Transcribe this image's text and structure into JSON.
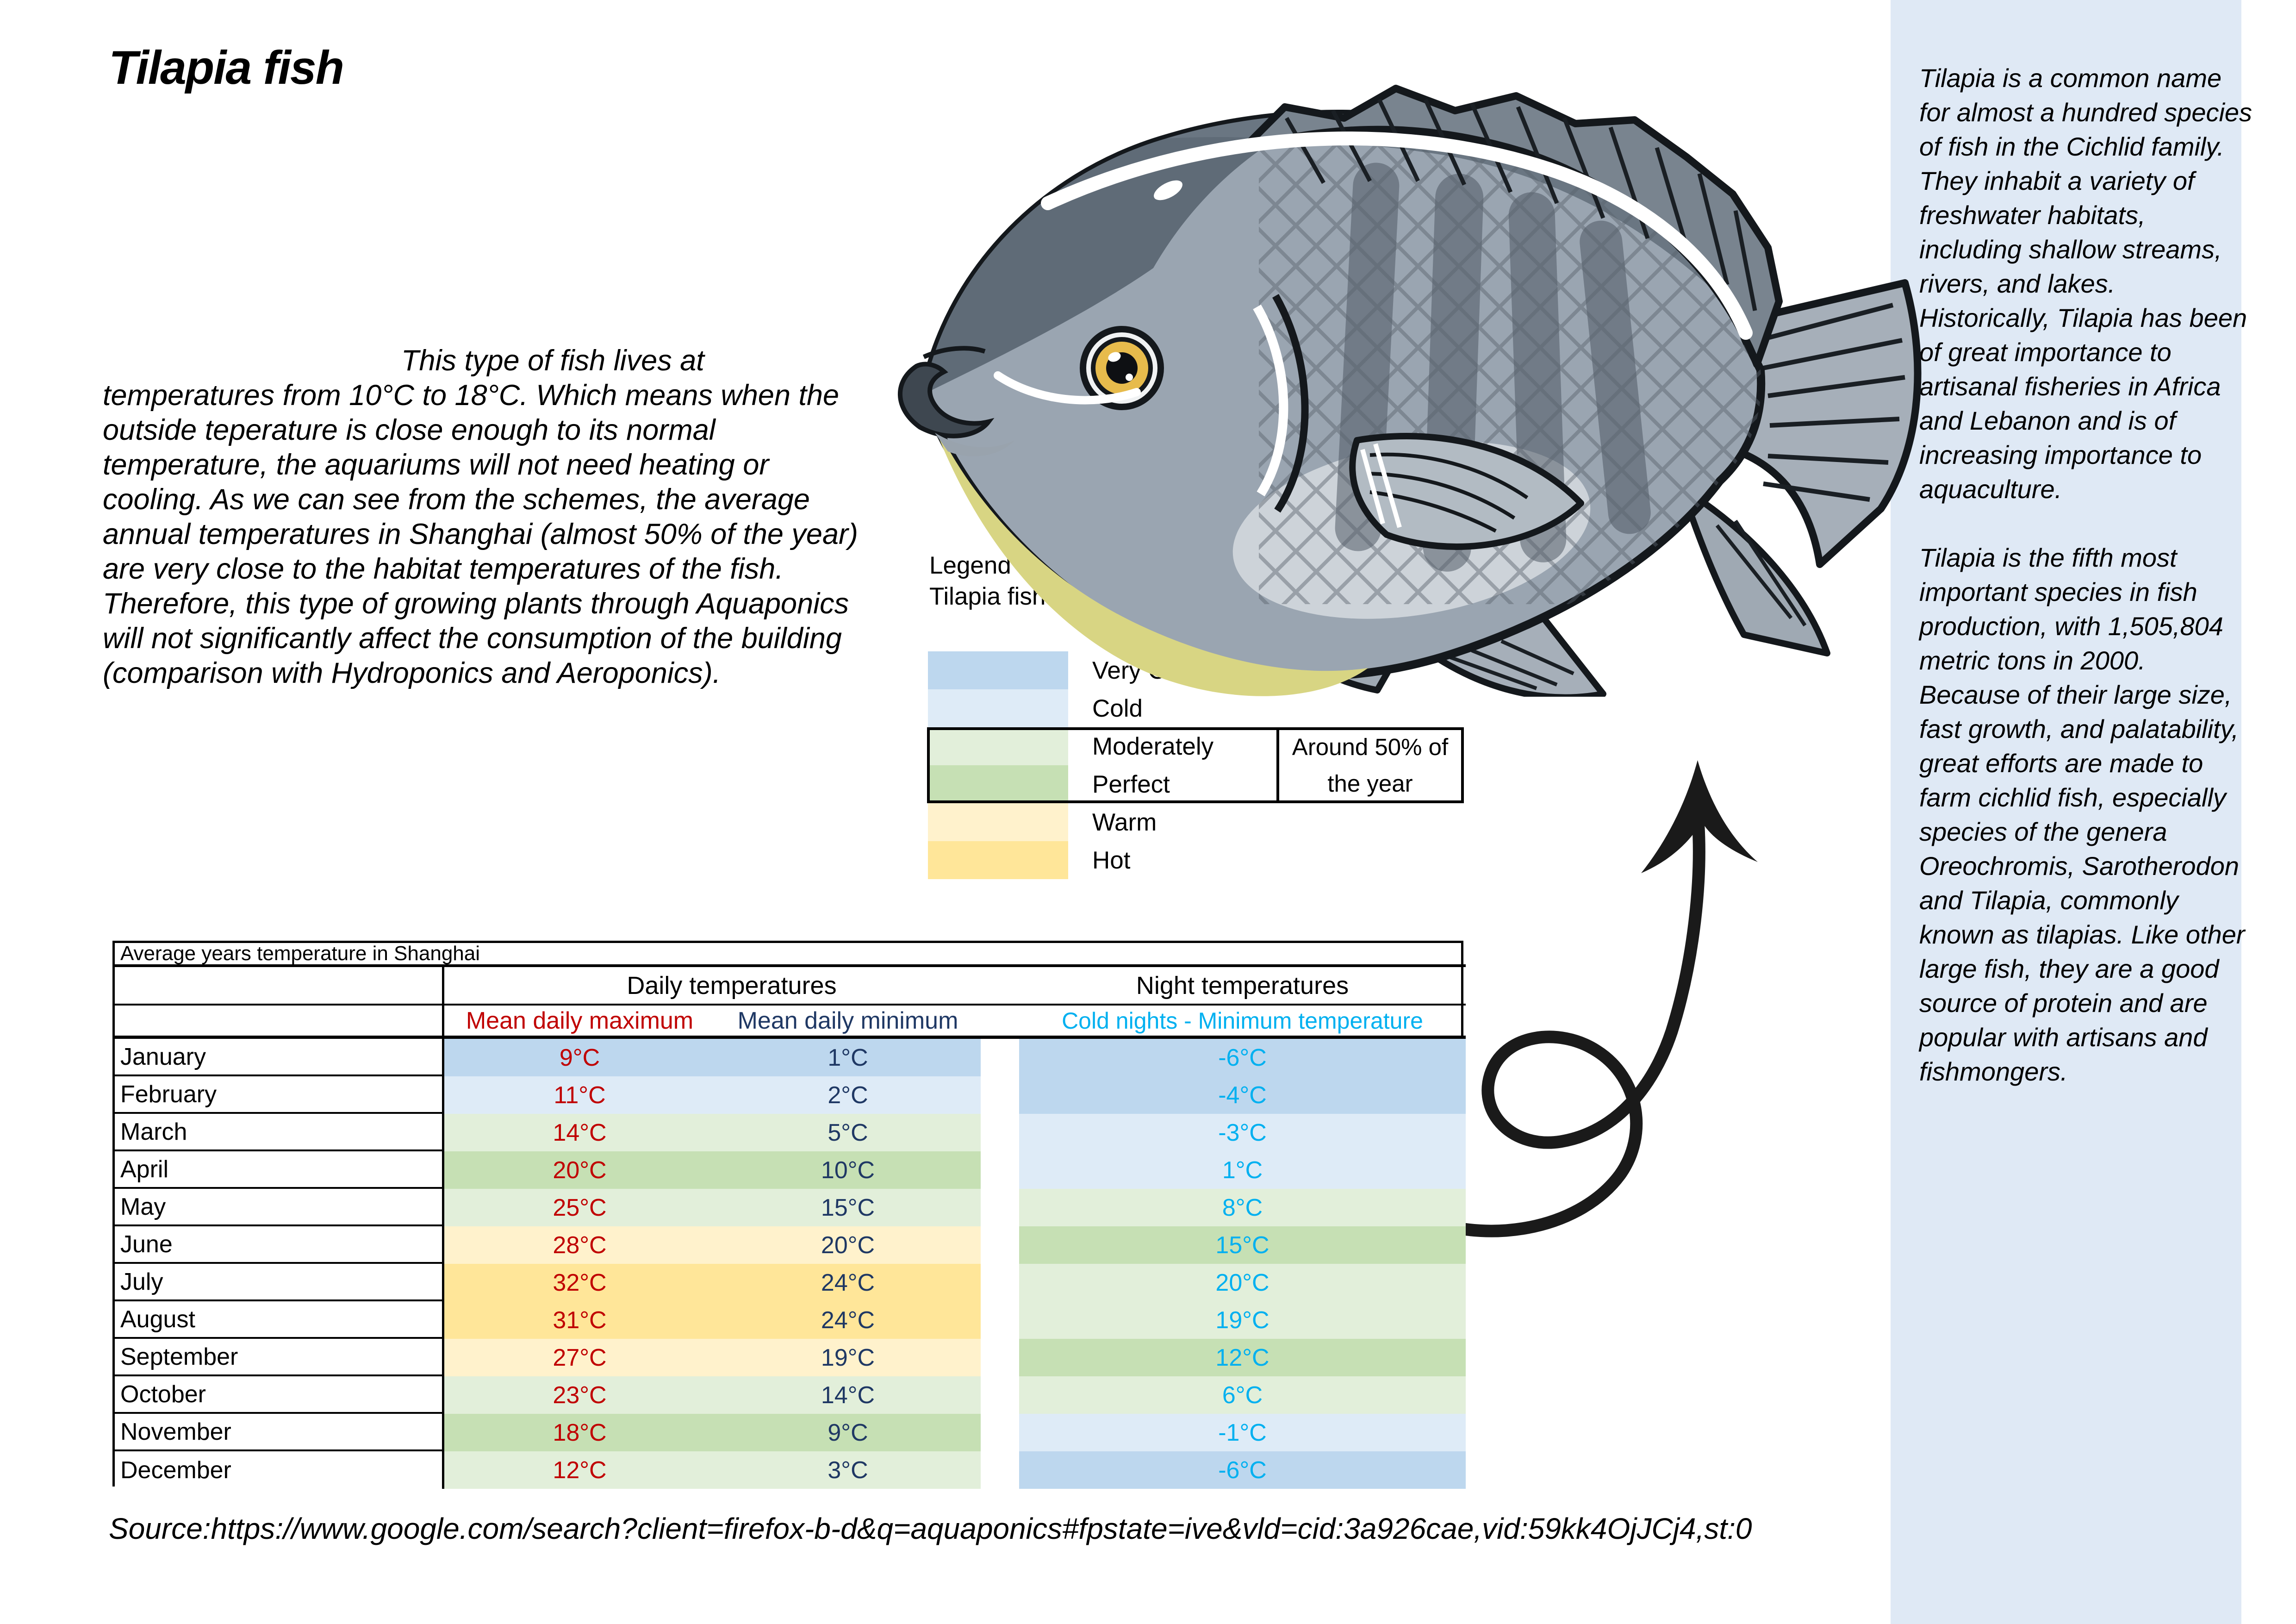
{
  "page": {
    "title": "Tilapia fish"
  },
  "intro": {
    "text": "This type of fish lives at temperatures from 10°C to 18°C. Which means when the outside teperature is close enough to its normal temperature, the aquariums will not need heating or cooling. As we can see from the schemes, the average annual temperatures in Shanghai (almost 50% of the year) are very close to the habitat temperatures of the fish. Therefore, this type of growing plants through Aquaponics will not significantly affect the consumption of the building (comparison with Hydroponics and Aeroponics)."
  },
  "fish": {
    "icon": "tilapia-fish-illustration"
  },
  "legend": {
    "title": "Legend - according to the needs of Tilapia fish",
    "items": [
      {
        "label": "Very Cold",
        "color": "#BDD7EE"
      },
      {
        "label": "Cold",
        "color": "#DEEBF7"
      },
      {
        "label": "Moderately",
        "color": "#E2EFDA"
      },
      {
        "label": "Perfect",
        "color": "#C6E0B4"
      },
      {
        "label": "Warm",
        "color": "#FFF2CC"
      },
      {
        "label": "Hot",
        "color": "#FFE699"
      }
    ],
    "annotation": "Around 50% of the year"
  },
  "table": {
    "title": "Average years temperature in Shanghai",
    "group_headers": {
      "daily": "Daily temperatures",
      "night": "Night temperatures"
    },
    "column_headers": {
      "max": "Mean daily maximum",
      "min": "Mean daily minimum",
      "night": "Cold nights - Minimum temperature"
    },
    "header_colors": {
      "max": "#C00000",
      "min": "#1F3864",
      "night": "#00B0F0"
    },
    "rows": [
      {
        "month": "January",
        "max": "9°C",
        "min": "1°C",
        "night": "-6°C",
        "day_color": "#BDD7EE",
        "night_color": "#BDD7EE"
      },
      {
        "month": "February",
        "max": "11°C",
        "min": "2°C",
        "night": "-4°C",
        "day_color": "#DEEBF7",
        "night_color": "#BDD7EE"
      },
      {
        "month": "March",
        "max": "14°C",
        "min": "5°C",
        "night": "-3°C",
        "day_color": "#E2EFDA",
        "night_color": "#DEEBF7"
      },
      {
        "month": "April",
        "max": "20°C",
        "min": "10°C",
        "night": "1°C",
        "day_color": "#C6E0B4",
        "night_color": "#DEEBF7"
      },
      {
        "month": "May",
        "max": "25°C",
        "min": "15°C",
        "night": "8°C",
        "day_color": "#E2EFDA",
        "night_color": "#E2EFDA"
      },
      {
        "month": "June",
        "max": "28°C",
        "min": "20°C",
        "night": "15°C",
        "day_color": "#FFF2CC",
        "night_color": "#C6E0B4"
      },
      {
        "month": "July",
        "max": "32°C",
        "min": "24°C",
        "night": "20°C",
        "day_color": "#FFE699",
        "night_color": "#E2EFDA"
      },
      {
        "month": "August",
        "max": "31°C",
        "min": "24°C",
        "night": "19°C",
        "day_color": "#FFE699",
        "night_color": "#E2EFDA"
      },
      {
        "month": "September",
        "max": "27°C",
        "min": "19°C",
        "night": "12°C",
        "day_color": "#FFF2CC",
        "night_color": "#C6E0B4"
      },
      {
        "month": "October",
        "max": "23°C",
        "min": "14°C",
        "night": "6°C",
        "day_color": "#E2EFDA",
        "night_color": "#E2EFDA"
      },
      {
        "month": "November",
        "max": "18°C",
        "min": "9°C",
        "night": "-1°C",
        "day_color": "#C6E0B4",
        "night_color": "#DEEBF7"
      },
      {
        "month": "December",
        "max": "12°C",
        "min": "3°C",
        "night": "-6°C",
        "day_color": "#E2EFDA",
        "night_color": "#BDD7EE"
      }
    ]
  },
  "sidebar": {
    "background_color": "#DFE9F5",
    "paragraphs": [
      "Tilapia is a common name for almost a hundred species of fish in the Cichlid family. They inhabit a variety of freshwater habitats, including shallow streams, rivers, and lakes. Historically, Tilapia has been of great importance to artisanal fisheries in Africa and Lebanon and is of increasing importance to aquaculture.",
      "Tilapia is the fifth most important species in fish production, with 1,505,804 metric tons in 2000. Because of their large size, fast growth, and palatability, great efforts are made to farm cichlid fish, especially species of the genera Oreochromis, Sarotherodon and Tilapia, commonly known as tilapias. Like other large fish, they are a good source of protein and are popular with artisans and fishmongers."
    ]
  },
  "source": {
    "text": "Source:https://www.google.com/search?client=firefox-b-d&q=aquaponics#fpstate=ive&vld=cid:3a926cae,vid:59kk4OjJCj4,st:0"
  }
}
